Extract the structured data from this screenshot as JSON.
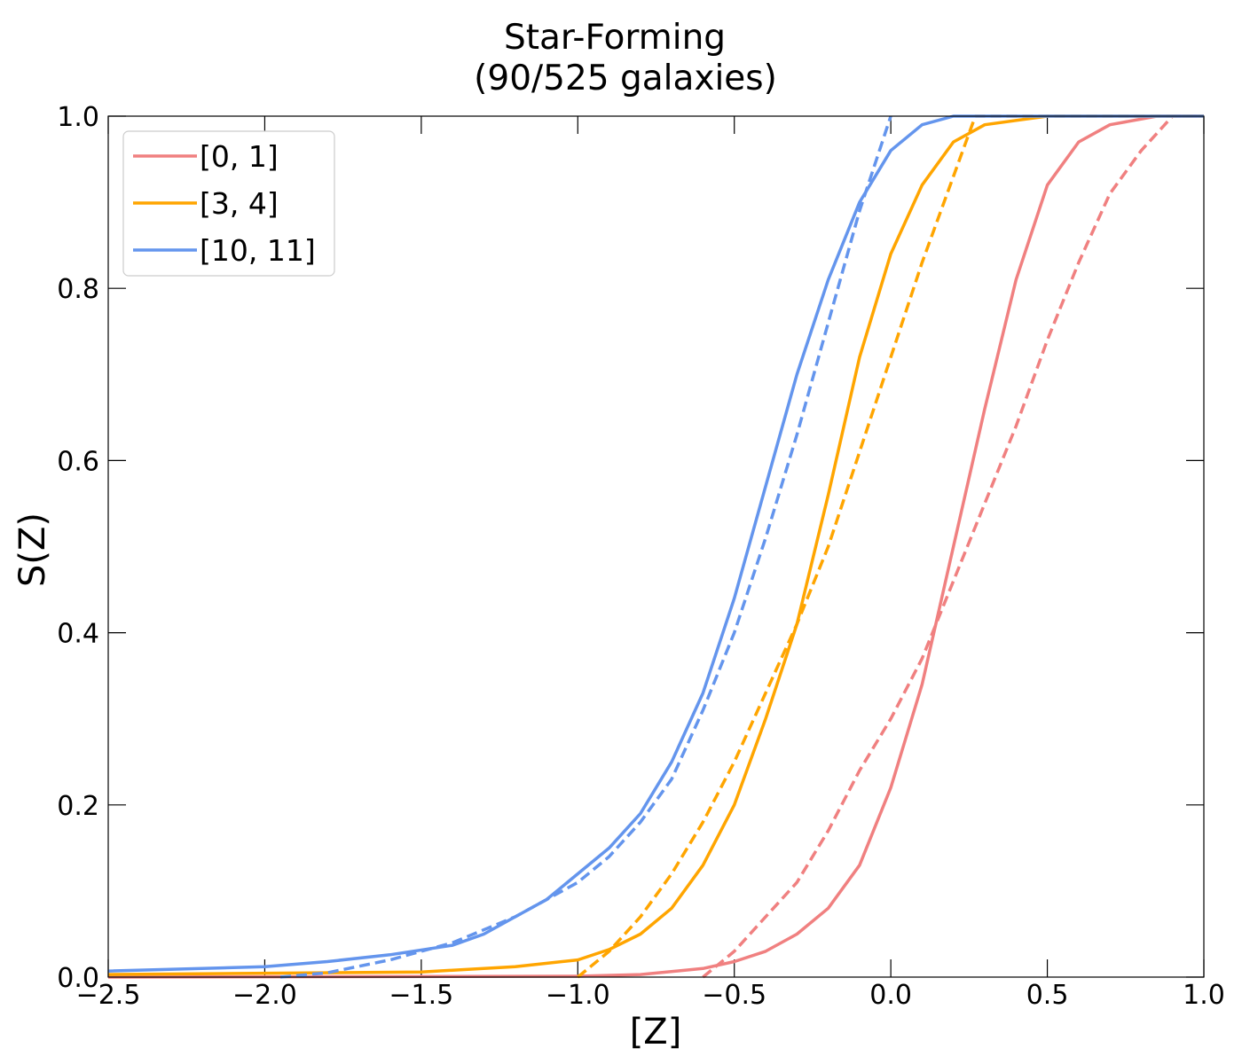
{
  "chart_data": {
    "type": "line",
    "title": "Star-Forming",
    "subtitle": "(90/525 galaxies)",
    "xlabel": "[Z]",
    "ylabel": "S(Z)",
    "xlim": [
      -2.5,
      1.0
    ],
    "ylim": [
      0.0,
      1.0
    ],
    "x_ticks": [
      "−2.5",
      "−2.0",
      "−1.5",
      "−1.0",
      "−0.5",
      "0.0",
      "0.5",
      "1.0"
    ],
    "y_ticks": [
      "0.0",
      "0.2",
      "0.4",
      "0.6",
      "0.8",
      "1.0"
    ],
    "grid": false,
    "legend_position": "top-left",
    "series": [
      {
        "name": "[0, 1]",
        "color": "#f08080",
        "style": "solid",
        "points": [
          [
            -2.5,
            0.0
          ],
          [
            -1.0,
            0.001
          ],
          [
            -0.8,
            0.003
          ],
          [
            -0.6,
            0.01
          ],
          [
            -0.5,
            0.018
          ],
          [
            -0.4,
            0.03
          ],
          [
            -0.3,
            0.05
          ],
          [
            -0.2,
            0.08
          ],
          [
            -0.1,
            0.13
          ],
          [
            0.0,
            0.22
          ],
          [
            0.1,
            0.34
          ],
          [
            0.2,
            0.5
          ],
          [
            0.3,
            0.66
          ],
          [
            0.4,
            0.81
          ],
          [
            0.5,
            0.92
          ],
          [
            0.6,
            0.97
          ],
          [
            0.7,
            0.99
          ],
          [
            0.85,
            1.0
          ],
          [
            1.0,
            1.0
          ]
        ]
      },
      {
        "name": "",
        "color": "#f08080",
        "style": "dashed",
        "points": [
          [
            -0.6,
            0.0
          ],
          [
            -0.5,
            0.03
          ],
          [
            -0.4,
            0.07
          ],
          [
            -0.3,
            0.11
          ],
          [
            -0.2,
            0.17
          ],
          [
            -0.1,
            0.24
          ],
          [
            0.0,
            0.3
          ],
          [
            0.1,
            0.37
          ],
          [
            0.2,
            0.46
          ],
          [
            0.3,
            0.55
          ],
          [
            0.4,
            0.64
          ],
          [
            0.5,
            0.74
          ],
          [
            0.6,
            0.83
          ],
          [
            0.7,
            0.91
          ],
          [
            0.8,
            0.96
          ],
          [
            0.9,
            1.0
          ],
          [
            1.0,
            1.0
          ]
        ]
      },
      {
        "name": "[3, 4]",
        "color": "#ffa500",
        "style": "solid",
        "points": [
          [
            -2.5,
            0.003
          ],
          [
            -1.5,
            0.006
          ],
          [
            -1.2,
            0.012
          ],
          [
            -1.0,
            0.02
          ],
          [
            -0.9,
            0.032
          ],
          [
            -0.8,
            0.05
          ],
          [
            -0.7,
            0.08
          ],
          [
            -0.6,
            0.13
          ],
          [
            -0.5,
            0.2
          ],
          [
            -0.4,
            0.3
          ],
          [
            -0.3,
            0.41
          ],
          [
            -0.2,
            0.56
          ],
          [
            -0.1,
            0.72
          ],
          [
            0.0,
            0.84
          ],
          [
            0.1,
            0.92
          ],
          [
            0.2,
            0.97
          ],
          [
            0.3,
            0.99
          ],
          [
            0.5,
            1.0
          ],
          [
            1.0,
            1.0
          ]
        ]
      },
      {
        "name": "",
        "color": "#ffa500",
        "style": "dashed",
        "points": [
          [
            -1.0,
            0.0
          ],
          [
            -0.9,
            0.03
          ],
          [
            -0.8,
            0.07
          ],
          [
            -0.7,
            0.12
          ],
          [
            -0.6,
            0.18
          ],
          [
            -0.5,
            0.25
          ],
          [
            -0.4,
            0.33
          ],
          [
            -0.3,
            0.41
          ],
          [
            -0.2,
            0.5
          ],
          [
            -0.1,
            0.61
          ],
          [
            0.0,
            0.72
          ],
          [
            0.1,
            0.83
          ],
          [
            0.2,
            0.93
          ],
          [
            0.27,
            1.0
          ],
          [
            1.0,
            1.0
          ]
        ]
      },
      {
        "name": "[10, 11]",
        "color": "#6495ed",
        "style": "solid",
        "points": [
          [
            -2.5,
            0.007
          ],
          [
            -2.0,
            0.012
          ],
          [
            -1.8,
            0.018
          ],
          [
            -1.6,
            0.026
          ],
          [
            -1.4,
            0.037
          ],
          [
            -1.3,
            0.05
          ],
          [
            -1.2,
            0.07
          ],
          [
            -1.1,
            0.09
          ],
          [
            -1.0,
            0.12
          ],
          [
            -0.9,
            0.15
          ],
          [
            -0.8,
            0.19
          ],
          [
            -0.7,
            0.25
          ],
          [
            -0.6,
            0.33
          ],
          [
            -0.5,
            0.44
          ],
          [
            -0.4,
            0.57
          ],
          [
            -0.3,
            0.7
          ],
          [
            -0.2,
            0.81
          ],
          [
            -0.1,
            0.9
          ],
          [
            0.0,
            0.96
          ],
          [
            0.1,
            0.99
          ],
          [
            0.2,
            1.0
          ],
          [
            1.0,
            1.0
          ]
        ]
      },
      {
        "name": "",
        "color": "#6495ed",
        "style": "dashed",
        "points": [
          [
            -1.95,
            0.0
          ],
          [
            -1.8,
            0.005
          ],
          [
            -1.6,
            0.02
          ],
          [
            -1.4,
            0.04
          ],
          [
            -1.2,
            0.07
          ],
          [
            -1.0,
            0.11
          ],
          [
            -0.9,
            0.14
          ],
          [
            -0.8,
            0.18
          ],
          [
            -0.7,
            0.23
          ],
          [
            -0.6,
            0.31
          ],
          [
            -0.5,
            0.4
          ],
          [
            -0.4,
            0.51
          ],
          [
            -0.3,
            0.63
          ],
          [
            -0.2,
            0.76
          ],
          [
            -0.1,
            0.89
          ],
          [
            0.0,
            1.0
          ]
        ]
      }
    ]
  }
}
